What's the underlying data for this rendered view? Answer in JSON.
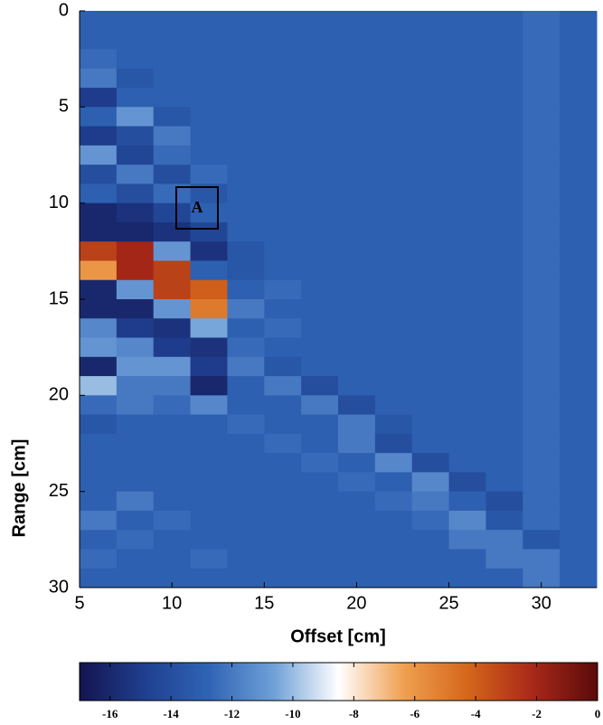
{
  "chart_data": {
    "type": "heatmap",
    "x_label": "Offset [cm]",
    "y_label": "Range [cm]",
    "xbins": [
      5,
      7,
      9,
      11,
      13,
      15,
      17,
      19,
      21,
      23,
      25,
      27,
      29,
      31,
      33
    ],
    "ybins": [
      0,
      1,
      2,
      3,
      4,
      5,
      6,
      7,
      8,
      9,
      10,
      11,
      12,
      13,
      14,
      15,
      16,
      17,
      18,
      19,
      20,
      21,
      22,
      23,
      24,
      25,
      26,
      27,
      28,
      29,
      30
    ],
    "xlim": [
      5,
      33
    ],
    "xticks": [
      5,
      10,
      15,
      20,
      25,
      30
    ],
    "ylim": [
      0,
      30
    ],
    "yticks": [
      0,
      5,
      10,
      15,
      20,
      25,
      30
    ],
    "y_reversed": true,
    "clim": [
      -17,
      0
    ],
    "cticks": [
      -16,
      -14,
      -12,
      -10,
      -8,
      -6,
      -4,
      -2,
      0
    ],
    "colormap": [
      "#14144f",
      "#1f3f8f",
      "#2f64b5",
      "#6fa0d8",
      "#ffffff",
      "#f0a050",
      "#d4661a",
      "#a82818",
      "#5a0a0a"
    ],
    "annotation": "A",
    "z": [
      [
        -13,
        -13,
        -13,
        -13,
        -13,
        -13,
        -13,
        -13,
        -13,
        -13,
        -13,
        -13,
        -12.5,
        -13
      ],
      [
        -13,
        -13,
        -13,
        -13,
        -13,
        -13,
        -13,
        -13,
        -13,
        -13,
        -13,
        -13,
        -12.5,
        -13
      ],
      [
        -12.5,
        -13,
        -13,
        -13,
        -13,
        -13,
        -13,
        -13,
        -13,
        -13,
        -13,
        -13,
        -12.5,
        -13
      ],
      [
        -12,
        -13.5,
        -13,
        -13,
        -13,
        -13,
        -13,
        -13,
        -13,
        -13,
        -13,
        -13,
        -12.5,
        -13
      ],
      [
        -15,
        -13,
        -13,
        -13,
        -13,
        -13,
        -13,
        -13,
        -13,
        -13,
        -13,
        -13,
        -12.5,
        -13
      ],
      [
        -13,
        -11,
        -13.5,
        -13,
        -13,
        -13,
        -13,
        -13,
        -13,
        -13,
        -13,
        -13,
        -12.5,
        -13
      ],
      [
        -15,
        -14,
        -12,
        -13,
        -13,
        -13,
        -13,
        -13,
        -13,
        -13,
        -13,
        -13,
        -12.5,
        -13
      ],
      [
        -11,
        -14.5,
        -12.5,
        -13,
        -13,
        -13,
        -13,
        -13,
        -13,
        -13,
        -13,
        -13,
        -12.5,
        -13
      ],
      [
        -14,
        -12,
        -14,
        -12.5,
        -13,
        -13,
        -13,
        -13,
        -13,
        -13,
        -13,
        -13,
        -12.5,
        -13
      ],
      [
        -13,
        -14,
        -12.5,
        -13.5,
        -13,
        -13,
        -13,
        -13,
        -13,
        -13,
        -13,
        -13,
        -12.5,
        -13
      ],
      [
        -16,
        -15.5,
        -14.5,
        -13,
        -13,
        -13,
        -13,
        -13,
        -13,
        -13,
        -13,
        -13,
        -12.5,
        -13
      ],
      [
        -16,
        -16,
        -15.5,
        -14.5,
        -13,
        -13,
        -13,
        -13,
        -13,
        -13,
        -13,
        -13,
        -12.5,
        -13
      ],
      [
        -3,
        -2,
        -11,
        -15.5,
        -13.5,
        -13,
        -13,
        -13,
        -13,
        -13,
        -13,
        -13,
        -12.5,
        -13
      ],
      [
        -6,
        -2,
        -3,
        -13,
        -13.5,
        -13,
        -13,
        -13,
        -13,
        -13,
        -13,
        -13,
        -12.5,
        -13
      ],
      [
        -16,
        -11,
        -3,
        -4,
        -13,
        -12.5,
        -13,
        -13,
        -13,
        -13,
        -13,
        -13,
        -12.5,
        -13
      ],
      [
        -16,
        -16,
        -11,
        -5,
        -12,
        -13,
        -13,
        -13,
        -13,
        -13,
        -13,
        -13,
        -12.5,
        -13
      ],
      [
        -11.5,
        -15,
        -15.5,
        -10.5,
        -13,
        -12.5,
        -13,
        -13,
        -13,
        -13,
        -13,
        -13,
        -12.5,
        -13
      ],
      [
        -11,
        -11.5,
        -15,
        -15.5,
        -12.5,
        -13,
        -13,
        -13,
        -13,
        -13,
        -13,
        -13,
        -12.5,
        -13
      ],
      [
        -16,
        -11,
        -11,
        -15,
        -12,
        -13.5,
        -13,
        -13,
        -13,
        -13,
        -13,
        -13,
        -12.5,
        -13
      ],
      [
        -10,
        -12,
        -12,
        -16,
        -13,
        -12,
        -14,
        -13,
        -13,
        -13,
        -13,
        -13,
        -12.5,
        -13
      ],
      [
        -12.5,
        -12,
        -12.5,
        -11.5,
        -13,
        -13,
        -12,
        -14,
        -13,
        -13,
        -13,
        -13,
        -12.5,
        -13
      ],
      [
        -13.5,
        -13,
        -13,
        -13,
        -12.5,
        -13,
        -13,
        -12,
        -13.5,
        -13,
        -13,
        -13,
        -12.5,
        -13
      ],
      [
        -13,
        -13,
        -13,
        -13,
        -13,
        -12.5,
        -13,
        -12,
        -14,
        -13,
        -13,
        -13,
        -12.5,
        -13
      ],
      [
        -13,
        -13,
        -13,
        -13,
        -13,
        -13,
        -12.5,
        -13,
        -11.5,
        -14,
        -13,
        -13,
        -12.5,
        -13
      ],
      [
        -13,
        -13,
        -13,
        -13,
        -13,
        -13,
        -13,
        -12.5,
        -13,
        -11.5,
        -14,
        -13,
        -12.5,
        -13
      ],
      [
        -13,
        -12,
        -13,
        -13,
        -13,
        -13,
        -13,
        -13,
        -12.5,
        -12,
        -13,
        -14,
        -12.5,
        -13
      ],
      [
        -12,
        -13,
        -12.5,
        -13,
        -13,
        -13,
        -13,
        -13,
        -13,
        -12.5,
        -11.5,
        -13.5,
        -12.5,
        -13
      ],
      [
        -13,
        -12.5,
        -13,
        -13,
        -13,
        -13,
        -13,
        -13,
        -13,
        -13,
        -12,
        -12,
        -13.5,
        -13
      ],
      [
        -12.5,
        -13,
        -13,
        -12.5,
        -13,
        -13,
        -13,
        -13,
        -13,
        -13,
        -13,
        -12,
        -12,
        -13
      ],
      [
        -13,
        -13,
        -13,
        -13,
        -13,
        -13,
        -13,
        -13,
        -13,
        -13,
        -13,
        -13,
        -12,
        -13
      ]
    ]
  }
}
